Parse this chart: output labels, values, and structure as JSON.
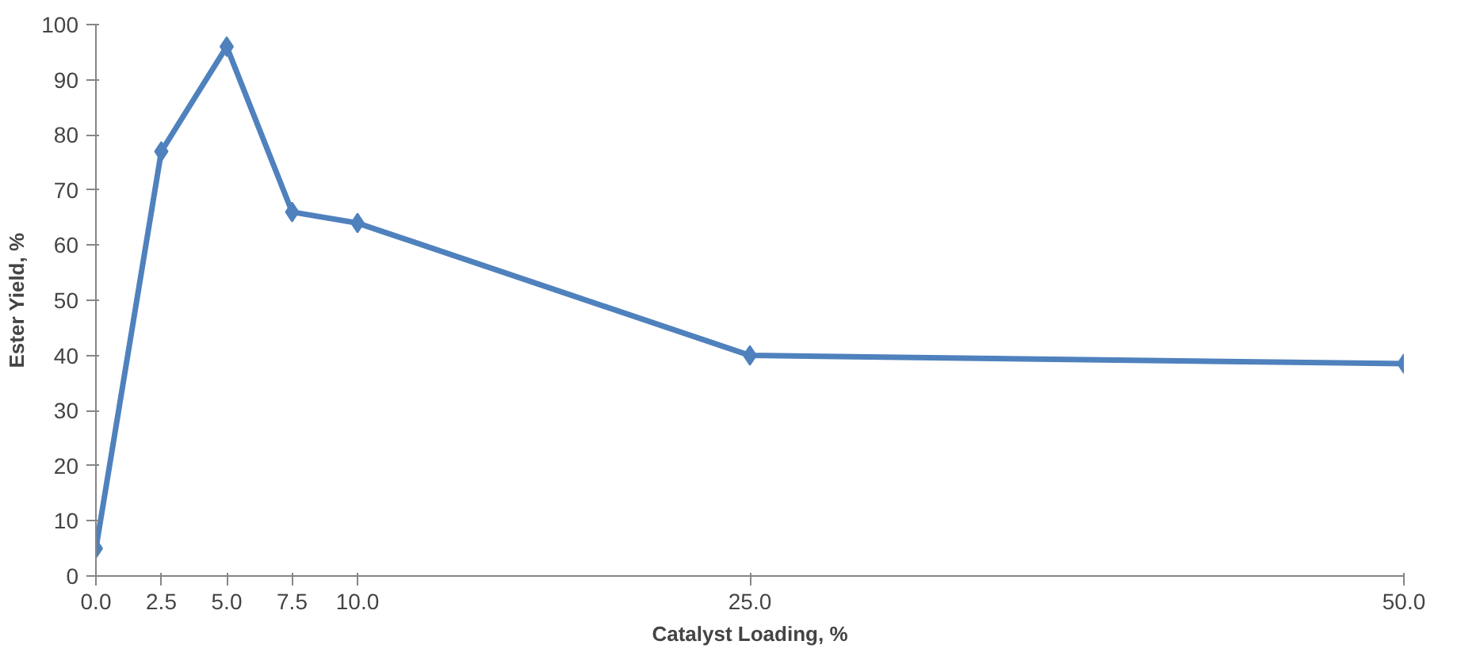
{
  "chart_data": {
    "type": "line",
    "xlabel": "Catalyst Loading, %",
    "ylabel": "Ester Yield, %",
    "x": [
      0,
      2.5,
      5,
      7.5,
      10,
      25,
      50
    ],
    "series": [
      {
        "color": "#4f81bd",
        "values": [
          5,
          77,
          96,
          66,
          64,
          40,
          38.5
        ]
      }
    ],
    "xlim": [
      0,
      50
    ],
    "ylim": [
      0,
      100
    ],
    "xticks": [
      {
        "value": 0,
        "label": "0.0"
      },
      {
        "value": 2.5,
        "label": "2.5"
      },
      {
        "value": 5,
        "label": "5.0"
      },
      {
        "value": 7.5,
        "label": "7.5"
      },
      {
        "value": 10,
        "label": "10.0"
      },
      {
        "value": 25,
        "label": "25.0"
      },
      {
        "value": 50,
        "label": "50.0"
      }
    ],
    "yticks": [
      0,
      10,
      20,
      30,
      40,
      50,
      60,
      70,
      80,
      90,
      100
    ],
    "grid": false,
    "marker": "diamond",
    "line_style": "solid"
  }
}
